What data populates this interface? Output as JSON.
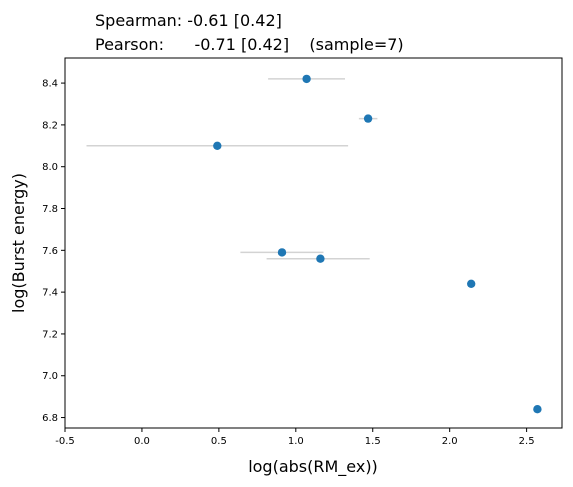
{
  "chart_data": {
    "type": "scatter",
    "title_lines": [
      "Spearman: -0.61 [0.42]",
      "Pearson:      -0.71 [0.42]    (sample=7)"
    ],
    "xlabel": "log(abs(RM_ex))",
    "ylabel": "log(Burst energy)",
    "xlim": [
      -0.5,
      2.73
    ],
    "ylim": [
      6.75,
      8.52
    ],
    "xticks": [
      -0.5,
      0.0,
      0.5,
      1.0,
      1.5,
      2.0,
      2.5
    ],
    "xtick_labels": [
      "-0.5",
      "0.0",
      "0.5",
      "1.0",
      "1.5",
      "2.0",
      "2.5"
    ],
    "yticks": [
      6.8,
      7.0,
      7.2,
      7.4,
      7.6,
      7.8,
      8.0,
      8.2,
      8.4
    ],
    "ytick_labels": [
      "6.8",
      "7.0",
      "7.2",
      "7.4",
      "7.6",
      "7.8",
      "8.0",
      "8.2",
      "8.4"
    ],
    "grid": false,
    "colors": {
      "points": "#1f77b4",
      "errorbars": "#d3d3d3"
    },
    "points": [
      {
        "x": 1.07,
        "y": 8.42,
        "xerr_low": 0.82,
        "xerr_high": 1.32
      },
      {
        "x": 1.47,
        "y": 8.23,
        "xerr_low": 1.41,
        "xerr_high": 1.53
      },
      {
        "x": 0.49,
        "y": 8.1,
        "xerr_low": -0.36,
        "xerr_high": 1.34
      },
      {
        "x": 0.91,
        "y": 7.59,
        "xerr_low": 0.64,
        "xerr_high": 1.18
      },
      {
        "x": 1.16,
        "y": 7.56,
        "xerr_low": 0.81,
        "xerr_high": 1.48
      },
      {
        "x": 2.14,
        "y": 7.44,
        "xerr_low": 2.14,
        "xerr_high": 2.14
      },
      {
        "x": 2.57,
        "y": 6.84,
        "xerr_low": 2.57,
        "xerr_high": 2.57
      }
    ]
  }
}
